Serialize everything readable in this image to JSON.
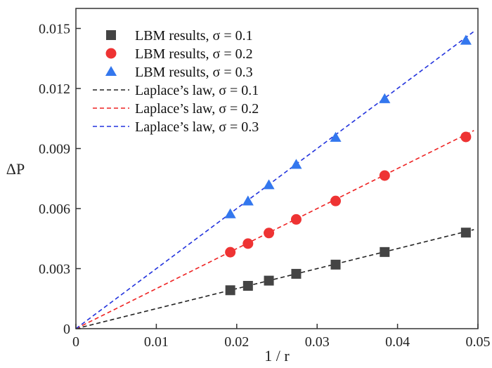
{
  "chart_data": {
    "type": "scatter",
    "xlabel": "1 / r",
    "ylabel": "ΔP",
    "xlim": [
      0,
      0.05
    ],
    "ylim": [
      0,
      0.016
    ],
    "xticks": [
      0,
      0.01,
      0.02,
      0.03,
      0.04,
      0.05
    ],
    "xtick_labels": [
      "0",
      "0.01",
      "0.02",
      "0.03",
      "0.04",
      "0.05"
    ],
    "yticks": [
      0,
      0.003,
      0.006,
      0.009,
      0.012,
      0.015
    ],
    "ytick_labels": [
      "0",
      "0.003",
      "0.006",
      "0.009",
      "0.012",
      "0.015"
    ],
    "grid": false,
    "legend_position": "top-left",
    "series": [
      {
        "name": "LBM results, σ = 0.1",
        "kind": "markers",
        "marker": "square",
        "color": "#444444",
        "x": [
          0.0192,
          0.0214,
          0.024,
          0.0274,
          0.0323,
          0.0384,
          0.0485
        ],
        "y": [
          0.00192,
          0.00214,
          0.0024,
          0.00274,
          0.0032,
          0.00383,
          0.0048
        ]
      },
      {
        "name": "LBM results, σ = 0.2",
        "kind": "markers",
        "marker": "circle",
        "color": "#ee3333",
        "x": [
          0.0192,
          0.0214,
          0.024,
          0.0274,
          0.0323,
          0.0384,
          0.0485
        ],
        "y": [
          0.00382,
          0.00425,
          0.00478,
          0.00546,
          0.00638,
          0.00765,
          0.00958
        ]
      },
      {
        "name": "LBM results, σ = 0.3",
        "kind": "markers",
        "marker": "triangle",
        "color": "#3377ee",
        "x": [
          0.0192,
          0.0214,
          0.024,
          0.0274,
          0.0323,
          0.0384,
          0.0485
        ],
        "y": [
          0.00573,
          0.00637,
          0.00718,
          0.0082,
          0.00955,
          0.01148,
          0.0144
        ]
      },
      {
        "name": "Laplace’s law, σ = 0.1",
        "kind": "dashed-line",
        "color": "#222222",
        "x": [
          0,
          0.0495
        ],
        "y": [
          0,
          0.00495
        ]
      },
      {
        "name": "Laplace’s law, σ = 0.2",
        "kind": "dashed-line",
        "color": "#ee2222",
        "x": [
          0,
          0.0495
        ],
        "y": [
          0,
          0.0099
        ]
      },
      {
        "name": "Laplace’s law, σ = 0.3",
        "kind": "dashed-line",
        "color": "#2233dd",
        "x": [
          0,
          0.0495
        ],
        "y": [
          0,
          0.01485
        ]
      }
    ]
  }
}
